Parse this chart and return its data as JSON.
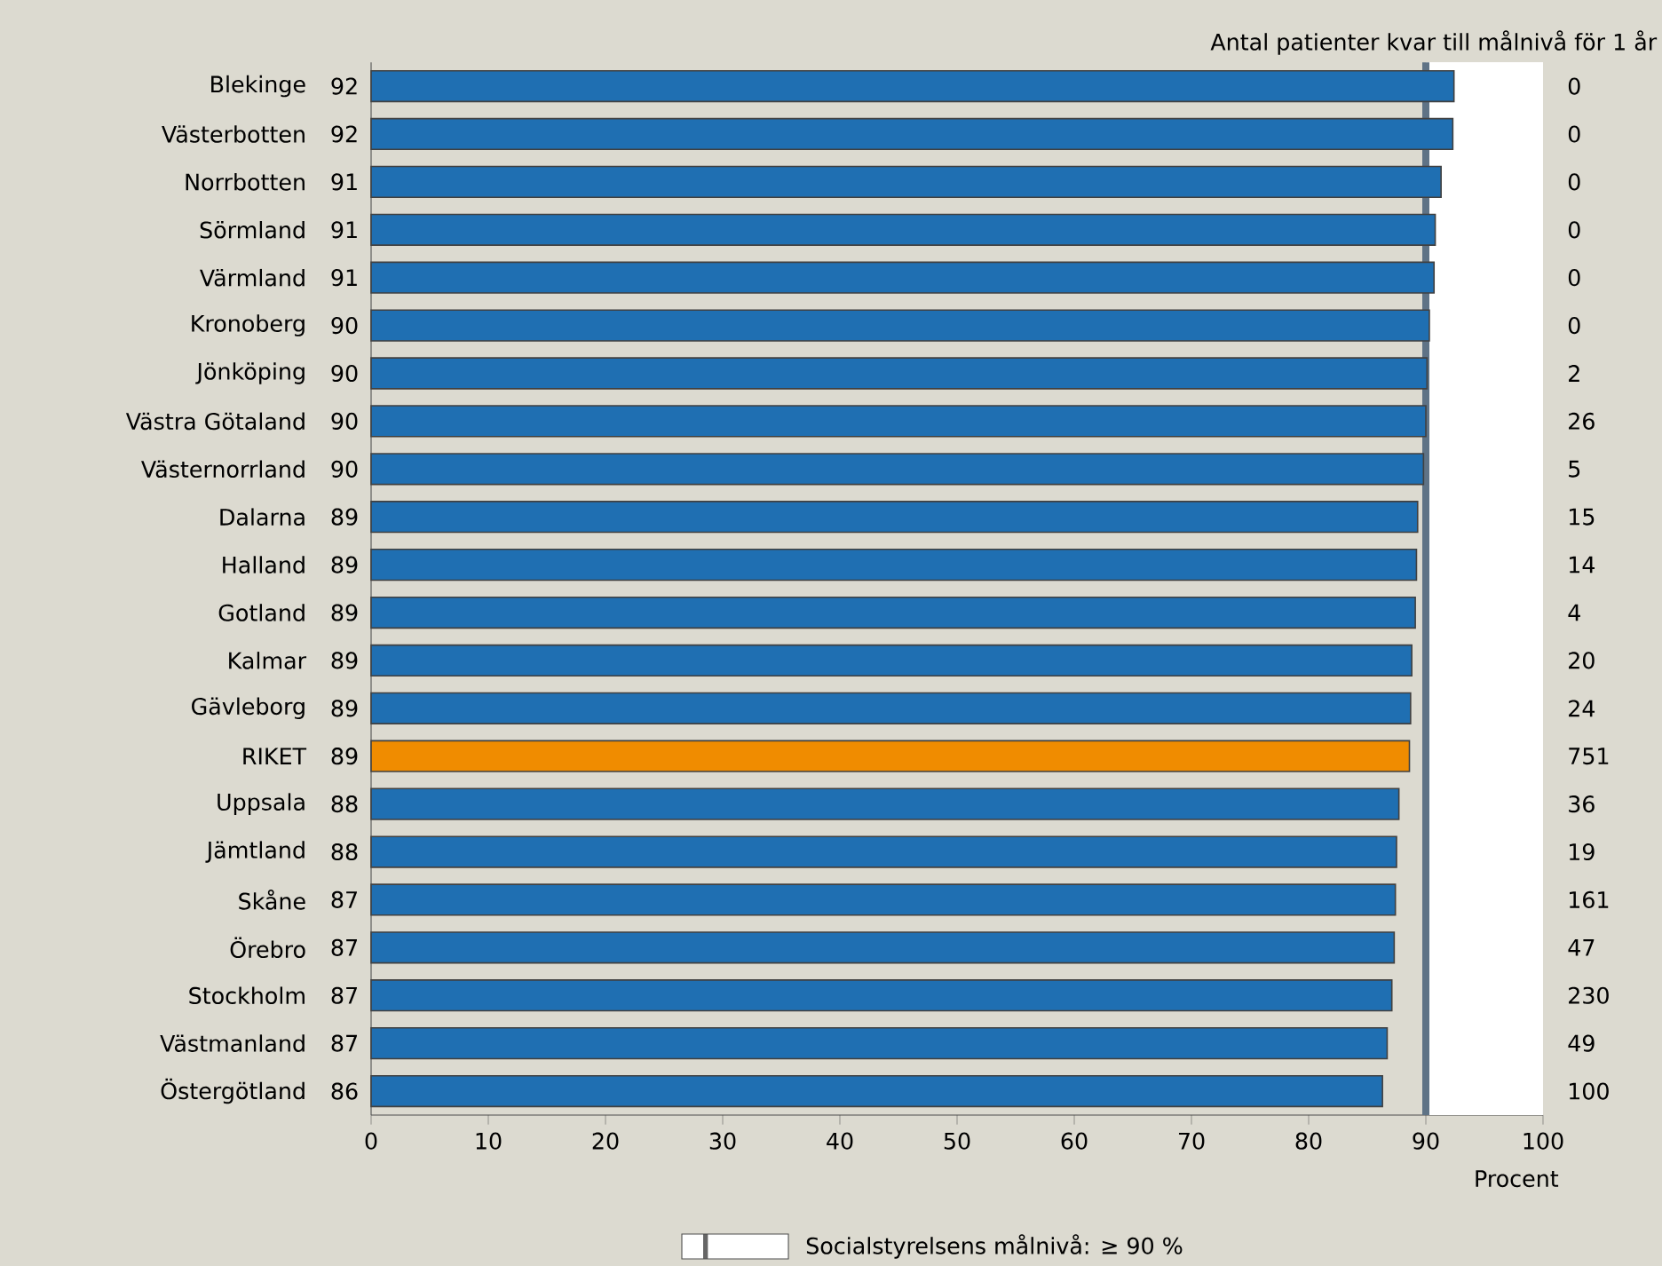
{
  "chart_data": {
    "type": "bar",
    "orientation": "horizontal",
    "xlabel": "Procent",
    "categories": [
      "Blekinge",
      "Västerbotten",
      "Norrbotten",
      "Sörmland",
      "Värmland",
      "Kronoberg",
      "Jönköping",
      "Västra Götaland",
      "Västernorrland",
      "Dalarna",
      "Halland",
      "Gotland",
      "Kalmar",
      "Gävleborg",
      "RIKET",
      "Uppsala",
      "Jämtland",
      "Skåne",
      "Örebro",
      "Stockholm",
      "Västmanland",
      "Östergötland"
    ],
    "values": [
      92.4,
      92.3,
      91.3,
      90.8,
      90.7,
      90.3,
      90.1,
      90.0,
      89.8,
      89.3,
      89.2,
      89.1,
      88.8,
      88.7,
      88.6,
      87.7,
      87.5,
      87.4,
      87.3,
      87.1,
      86.7,
      86.3
    ],
    "value_labels": [
      "92",
      "92",
      "91",
      "91",
      "91",
      "90",
      "90",
      "90",
      "90",
      "89",
      "89",
      "89",
      "89",
      "89",
      "89",
      "88",
      "88",
      "87",
      "87",
      "87",
      "87",
      "86"
    ],
    "colors": [
      "#1f6fb2",
      "#1f6fb2",
      "#1f6fb2",
      "#1f6fb2",
      "#1f6fb2",
      "#1f6fb2",
      "#1f6fb2",
      "#1f6fb2",
      "#1f6fb2",
      "#1f6fb2",
      "#1f6fb2",
      "#1f6fb2",
      "#1f6fb2",
      "#1f6fb2",
      "#f08c00",
      "#1f6fb2",
      "#1f6fb2",
      "#1f6fb2",
      "#1f6fb2",
      "#1f6fb2",
      "#1f6fb2",
      "#1f6fb2"
    ],
    "xlim": [
      0,
      100
    ],
    "xticks": [
      0,
      10,
      20,
      30,
      40,
      50,
      60,
      70,
      80,
      90,
      100
    ],
    "bands": [
      {
        "axis": "x",
        "from": 90,
        "to": 100,
        "label": "Socialstyrelsens målnivå: ≥ 90 %",
        "color": "#ffffff"
      }
    ],
    "ref_lines": [
      {
        "axis": "x",
        "value": 90,
        "color": "#5f7386"
      }
    ],
    "annotations": [
      "Antal patienter kvar till målnivå för 1 år",
      "0",
      "0",
      "0",
      "0",
      "0",
      "0",
      "2",
      "26",
      "5",
      "15",
      "14",
      "4",
      "20",
      "24",
      "751",
      "36",
      "19",
      "161",
      "47",
      "230",
      "49",
      "100"
    ]
  }
}
